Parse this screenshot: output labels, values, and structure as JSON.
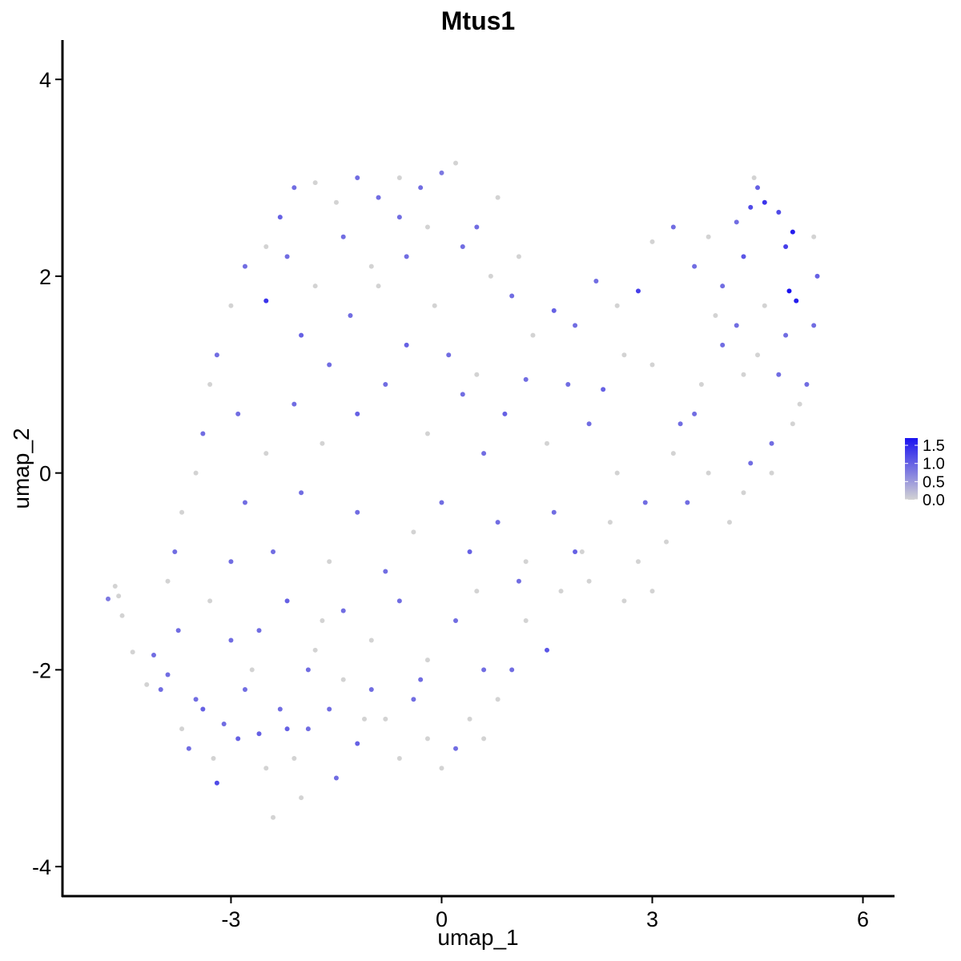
{
  "chart_data": {
    "type": "scatter",
    "title": "Mtus1",
    "xlabel": "umap_1",
    "ylabel": "umap_2",
    "xlim": [
      -5.4,
      6.45
    ],
    "ylim": [
      -4.3,
      4.4
    ],
    "x_ticks": [
      -3,
      0,
      3,
      6
    ],
    "y_ticks": [
      -4,
      -2,
      0,
      2,
      4
    ],
    "x_tick_labels": [
      "-3",
      "0",
      "3",
      "6"
    ],
    "y_tick_labels": [
      "-4",
      "-2",
      "0",
      "2",
      "4"
    ],
    "grid": false,
    "legend": {
      "position": "right",
      "type": "colorbar",
      "low_color": "#d3d3d3",
      "high_color": "#1a12f0",
      "range": [
        0,
        1.7
      ],
      "tick_values": [
        1.5,
        1.0,
        0.5,
        0.0
      ],
      "tick_labels": [
        "1.5",
        "1.0",
        "0.5",
        "0.0"
      ]
    },
    "expression_color_low": "#d3d3d3",
    "expression_color_high": "#1a12f0",
    "points": [
      [
        -4.75,
        -1.28,
        0.8
      ],
      [
        -4.65,
        -1.15,
        0
      ],
      [
        -4.6,
        -1.25,
        0
      ],
      [
        -4.55,
        -1.45,
        0
      ],
      [
        -4.4,
        -1.82,
        0
      ],
      [
        -4.2,
        -2.15,
        0
      ],
      [
        -4.1,
        -1.85,
        0.9
      ],
      [
        -4.0,
        -2.2,
        0.9
      ],
      [
        -3.9,
        -2.05,
        0.9
      ],
      [
        -3.75,
        -1.6,
        0.9
      ],
      [
        -3.7,
        -2.6,
        0
      ],
      [
        -3.6,
        -2.8,
        0.9
      ],
      [
        -3.5,
        -2.3,
        0.9
      ],
      [
        -3.4,
        -2.4,
        1.0
      ],
      [
        -3.25,
        -2.9,
        0
      ],
      [
        -3.2,
        -3.15,
        1.2
      ],
      [
        -3.1,
        -2.55,
        0.9
      ],
      [
        -3.0,
        -1.7,
        0.9
      ],
      [
        -2.9,
        -2.7,
        1.0
      ],
      [
        -2.8,
        -2.2,
        0.9
      ],
      [
        -2.6,
        -2.65,
        1.0
      ],
      [
        -2.5,
        -3.0,
        0
      ],
      [
        -2.4,
        -3.5,
        0
      ],
      [
        -2.3,
        -2.4,
        0.9
      ],
      [
        -2.2,
        -2.6,
        1.0
      ],
      [
        -2.1,
        -2.9,
        0
      ],
      [
        -2.0,
        -3.3,
        0
      ],
      [
        -1.9,
        -2.0,
        0.9
      ],
      [
        -1.7,
        -1.5,
        0
      ],
      [
        -1.6,
        -2.4,
        0.9
      ],
      [
        -1.5,
        -3.1,
        0.9
      ],
      [
        -1.4,
        -2.1,
        0
      ],
      [
        -1.2,
        -2.75,
        1.0
      ],
      [
        -1.0,
        -2.2,
        0.9
      ],
      [
        -0.8,
        -2.5,
        0
      ],
      [
        -0.6,
        -2.9,
        0
      ],
      [
        -0.4,
        -2.3,
        0.9
      ],
      [
        -0.2,
        -2.7,
        0
      ],
      [
        0.0,
        -3.0,
        0
      ],
      [
        0.2,
        -2.8,
        0.9
      ],
      [
        0.4,
        -2.5,
        0
      ],
      [
        0.6,
        -2.7,
        0
      ],
      [
        0.8,
        -2.3,
        0
      ],
      [
        1.0,
        -2.0,
        0.9
      ],
      [
        1.2,
        -1.5,
        0
      ],
      [
        1.5,
        -1.8,
        1.1
      ],
      [
        1.7,
        -1.2,
        0
      ],
      [
        1.9,
        -0.8,
        1.0
      ],
      [
        2.1,
        -1.1,
        0
      ],
      [
        2.4,
        -0.5,
        0
      ],
      [
        2.6,
        -1.3,
        0
      ],
      [
        2.8,
        -0.9,
        0
      ],
      [
        3.0,
        -1.2,
        0
      ],
      [
        3.2,
        -0.7,
        0
      ],
      [
        3.5,
        -0.3,
        0.9
      ],
      [
        3.8,
        0.0,
        0
      ],
      [
        4.1,
        -0.5,
        0
      ],
      [
        4.4,
        0.1,
        0.9
      ],
      [
        4.7,
        0.3,
        0.9
      ],
      [
        5.0,
        0.5,
        0
      ],
      [
        5.2,
        0.9,
        0.9
      ],
      [
        5.3,
        1.5,
        0.9
      ],
      [
        5.35,
        2.0,
        1.0
      ],
      [
        5.3,
        2.4,
        0
      ],
      [
        5.0,
        2.45,
        1.6
      ],
      [
        4.95,
        1.85,
        1.7
      ],
      [
        5.05,
        1.75,
        1.6
      ],
      [
        4.9,
        2.3,
        1.3
      ],
      [
        4.8,
        2.65,
        1.2
      ],
      [
        4.6,
        2.75,
        1.4
      ],
      [
        4.5,
        2.9,
        1.0
      ],
      [
        4.4,
        2.7,
        1.2
      ],
      [
        4.45,
        3.0,
        0
      ],
      [
        4.2,
        2.55,
        0.9
      ],
      [
        4.3,
        2.2,
        1.1
      ],
      [
        4.0,
        1.9,
        0.9
      ],
      [
        3.8,
        2.4,
        0
      ],
      [
        3.6,
        2.1,
        0.9
      ],
      [
        3.3,
        2.5,
        0.9
      ],
      [
        3.0,
        2.35,
        0
      ],
      [
        2.8,
        1.85,
        1.3
      ],
      [
        2.5,
        1.7,
        0
      ],
      [
        2.2,
        1.95,
        0.9
      ],
      [
        1.9,
        1.5,
        0.9
      ],
      [
        1.6,
        1.65,
        1.0
      ],
      [
        1.3,
        1.4,
        0
      ],
      [
        1.0,
        1.8,
        0.9
      ],
      [
        0.8,
        2.8,
        0
      ],
      [
        0.5,
        2.5,
        0.9
      ],
      [
        0.2,
        3.15,
        0
      ],
      [
        0.0,
        3.05,
        0.8
      ],
      [
        -0.3,
        2.9,
        0.9
      ],
      [
        -0.6,
        3.0,
        0
      ],
      [
        -0.9,
        2.8,
        0.9
      ],
      [
        -1.2,
        3.0,
        0.9
      ],
      [
        -1.5,
        2.75,
        0
      ],
      [
        -1.8,
        2.95,
        0
      ],
      [
        -2.1,
        2.9,
        0.9
      ],
      [
        -2.3,
        2.6,
        1.0
      ],
      [
        -2.5,
        2.3,
        0
      ],
      [
        -2.8,
        2.1,
        0.9
      ],
      [
        -3.0,
        1.7,
        0
      ],
      [
        -3.2,
        1.2,
        0.9
      ],
      [
        -3.3,
        0.9,
        0
      ],
      [
        -3.4,
        0.4,
        0.9
      ],
      [
        -3.5,
        0.0,
        0
      ],
      [
        -3.7,
        -0.4,
        0
      ],
      [
        -3.8,
        -0.8,
        0.9
      ],
      [
        -3.9,
        -1.1,
        0
      ],
      [
        -2.5,
        1.75,
        1.4
      ],
      [
        -2.0,
        1.4,
        1.0
      ],
      [
        -1.6,
        1.1,
        0.9
      ],
      [
        -1.2,
        0.6,
        1.0
      ],
      [
        -0.8,
        0.9,
        0.9
      ],
      [
        -0.5,
        1.3,
        1.0
      ],
      [
        -0.2,
        0.4,
        0
      ],
      [
        0.3,
        0.8,
        0.9
      ],
      [
        0.6,
        0.2,
        0.9
      ],
      [
        0.9,
        0.6,
        1.0
      ],
      [
        1.2,
        0.95,
        0.9
      ],
      [
        1.5,
        0.3,
        0
      ],
      [
        1.8,
        0.9,
        0.9
      ],
      [
        2.1,
        0.5,
        0.9
      ],
      [
        2.3,
        0.85,
        1.0
      ],
      [
        2.6,
        1.2,
        0
      ],
      [
        3.0,
        1.1,
        0
      ],
      [
        3.4,
        0.5,
        0.9
      ],
      [
        3.7,
        0.9,
        0
      ],
      [
        4.0,
        1.3,
        0.9
      ],
      [
        4.3,
        1.0,
        0
      ],
      [
        -2.8,
        -0.3,
        0.9
      ],
      [
        -2.4,
        -0.8,
        0.9
      ],
      [
        -2.0,
        -0.2,
        0.9
      ],
      [
        -1.6,
        -0.9,
        0
      ],
      [
        -1.2,
        -0.4,
        0.9
      ],
      [
        -0.8,
        -1.0,
        0.9
      ],
      [
        -0.4,
        -0.6,
        0
      ],
      [
        0.0,
        -0.3,
        0.9
      ],
      [
        0.4,
        -0.8,
        1.0
      ],
      [
        0.8,
        -0.5,
        0.9
      ],
      [
        1.2,
        -0.9,
        0
      ],
      [
        1.6,
        -0.4,
        0.9
      ],
      [
        2.0,
        -0.8,
        0
      ],
      [
        -2.6,
        -1.6,
        0.9
      ],
      [
        -2.2,
        -1.3,
        1.0
      ],
      [
        -1.8,
        -1.8,
        0
      ],
      [
        -1.4,
        -1.4,
        0.9
      ],
      [
        -1.0,
        -1.7,
        0
      ],
      [
        -0.6,
        -1.3,
        0.9
      ],
      [
        -0.2,
        -1.9,
        0
      ],
      [
        0.2,
        -1.5,
        0.9
      ],
      [
        0.6,
        -2.0,
        0.9
      ],
      [
        -3.3,
        -1.3,
        0
      ],
      [
        -3.0,
        -0.9,
        0.9
      ],
      [
        -2.7,
        -2.0,
        0
      ],
      [
        -1.9,
        -2.6,
        0.9
      ],
      [
        -1.1,
        -2.5,
        0
      ],
      [
        -0.3,
        -2.1,
        0.9
      ],
      [
        0.5,
        -1.2,
        0
      ],
      [
        1.1,
        -1.1,
        0.9
      ],
      [
        -2.9,
        0.6,
        0.9
      ],
      [
        -2.5,
        0.2,
        0
      ],
      [
        -2.1,
        0.7,
        0.9
      ],
      [
        -1.7,
        0.3,
        0
      ],
      [
        -1.3,
        1.6,
        0.9
      ],
      [
        -0.9,
        1.9,
        0
      ],
      [
        -0.5,
        2.2,
        0.9
      ],
      [
        -0.1,
        1.7,
        0
      ],
      [
        0.3,
        2.3,
        0.9
      ],
      [
        0.7,
        2.0,
        0
      ],
      [
        1.1,
        2.2,
        0
      ],
      [
        -2.2,
        2.2,
        0.9
      ],
      [
        -1.8,
        1.9,
        0
      ],
      [
        -1.4,
        2.4,
        0.9
      ],
      [
        -1.0,
        2.1,
        0
      ],
      [
        -0.6,
        2.6,
        0.9
      ],
      [
        -0.2,
        2.5,
        0
      ],
      [
        0.1,
        1.2,
        0.9
      ],
      [
        0.5,
        1.0,
        0
      ],
      [
        2.5,
        0.0,
        0
      ],
      [
        2.9,
        -0.3,
        0.9
      ],
      [
        3.3,
        0.2,
        0
      ],
      [
        3.6,
        0.6,
        0.9
      ],
      [
        3.9,
        1.6,
        0
      ],
      [
        4.2,
        1.5,
        0.9
      ],
      [
        4.5,
        1.2,
        0
      ],
      [
        4.8,
        1.0,
        0.9
      ],
      [
        4.6,
        1.7,
        0
      ],
      [
        4.9,
        1.4,
        0.9
      ],
      [
        5.1,
        0.7,
        0
      ],
      [
        4.7,
        0.0,
        0
      ],
      [
        4.3,
        -0.2,
        0
      ]
    ]
  }
}
